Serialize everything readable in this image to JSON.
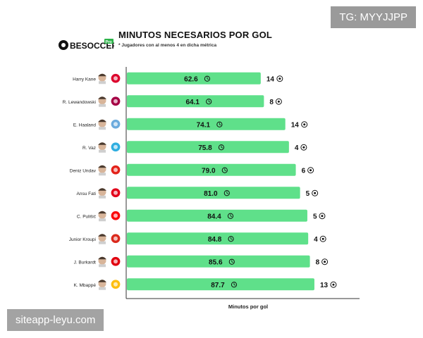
{
  "watermarks": {
    "top_right": "TG: MYYJJPP",
    "bottom_left": "siteapp-leyu.com"
  },
  "brand": {
    "logo_text": "BESOCCER",
    "logo_badge": "Pro"
  },
  "colors": {
    "bar": "#5fe08a",
    "bar_text": "#111111",
    "axis": "#333333"
  },
  "chart_data": {
    "type": "bar",
    "orientation": "horizontal",
    "title": "MINUTOS NECESARIOS POR GOL",
    "subtitle": "* Jugadores con al menos 4 en dicha métrica",
    "xlabel": "Minutos por gol",
    "ylabel": "",
    "xlim": [
      0,
      92
    ],
    "categories": [
      "Harry Kane",
      "R. Lewandowski",
      "E. Haaland",
      "R. Vaz",
      "Deniz Undav",
      "Ansu Fati",
      "C. Pulišić",
      "Junior Kroupi",
      "J. Burkardt",
      "K. Mbappé"
    ],
    "series": [
      {
        "name": "Minutos por gol",
        "values": [
          62.6,
          64.1,
          74.1,
          75.8,
          79.0,
          81.0,
          84.4,
          84.8,
          85.6,
          87.7
        ],
        "labels": [
          "62.6",
          "64.1",
          "74.1",
          "75.8",
          "79.0",
          "81.0",
          "84.4",
          "84.8",
          "85.6",
          "87.7"
        ]
      },
      {
        "name": "Goles",
        "values": [
          14,
          8,
          14,
          4,
          6,
          5,
          5,
          4,
          8,
          13
        ]
      }
    ],
    "player_icons": [
      "player-avatar",
      "player-avatar",
      "player-avatar",
      "player-avatar",
      "player-avatar",
      "player-avatar",
      "player-avatar",
      "player-avatar",
      "player-avatar",
      "player-avatar"
    ],
    "club_icons": [
      "bayern-crest-icon",
      "barcelona-crest-icon",
      "man-city-crest-icon",
      "marseille-crest-icon",
      "stuttgart-crest-icon",
      "monaco-crest-icon",
      "milan-crest-icon",
      "bournemouth-crest-icon",
      "frankfurt-crest-icon",
      "real-madrid-crest-icon"
    ],
    "club_colors": [
      "#dc052d",
      "#a50044",
      "#6cabdd",
      "#2faee0",
      "#e32219",
      "#e2001a",
      "#fb090b",
      "#da291c",
      "#e1000f",
      "#febe10"
    ]
  }
}
